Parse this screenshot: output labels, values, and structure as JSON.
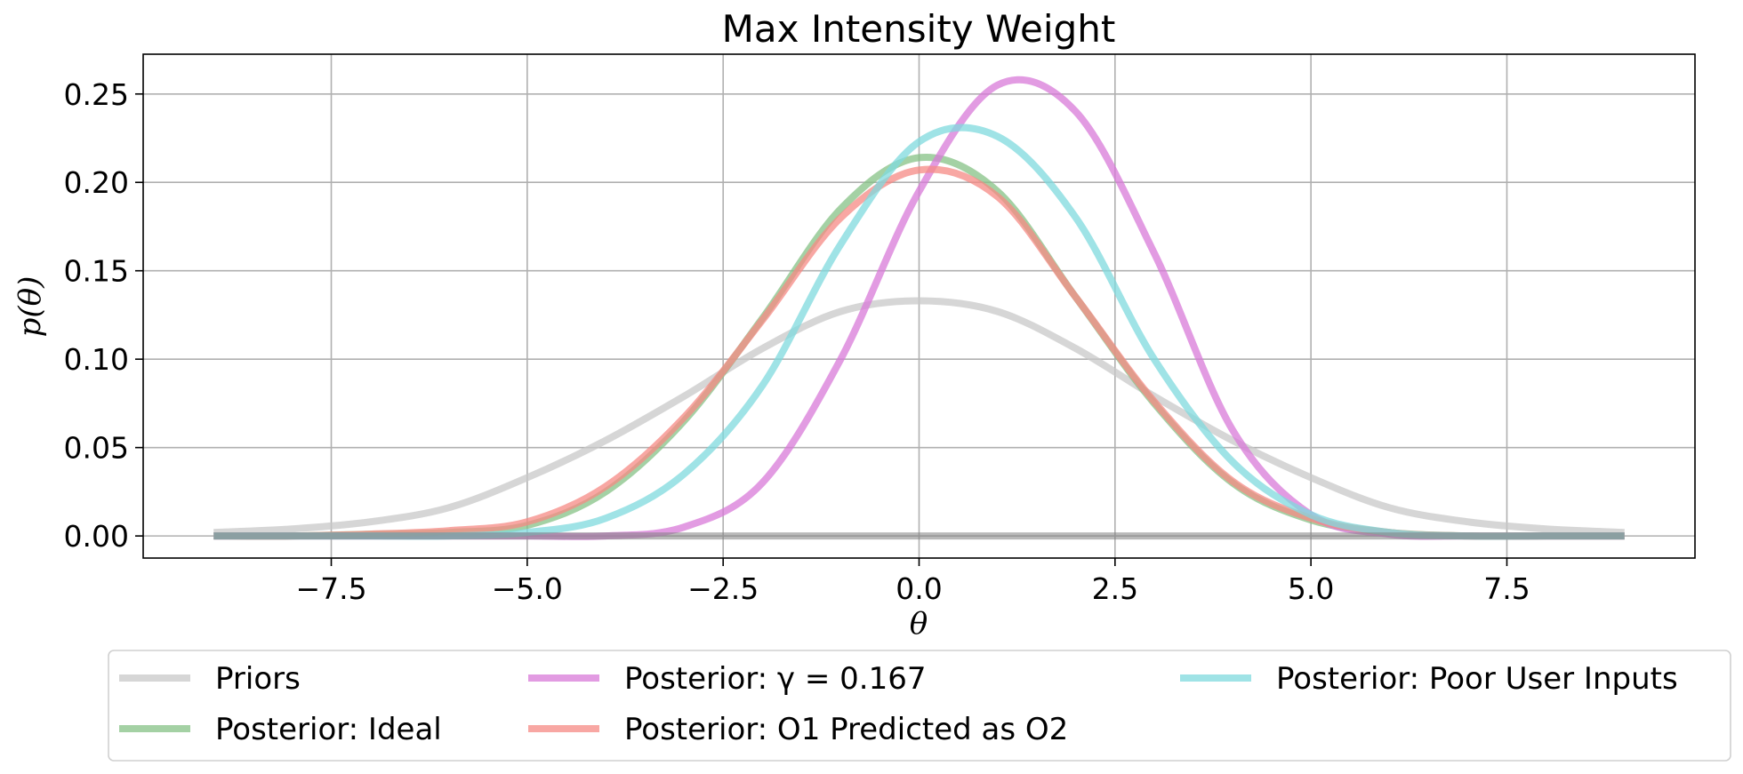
{
  "chart_data": {
    "type": "line",
    "title": "Max Intensity Weight",
    "xlabel": "θ",
    "ylabel": "p(θ)",
    "xlim": [
      -9.9,
      9.9
    ],
    "ylim": [
      -0.0125,
      0.2725
    ],
    "xticks": [
      -7.5,
      -5.0,
      -2.5,
      0.0,
      2.5,
      5.0,
      7.5
    ],
    "xtick_labels": [
      "−7.5",
      "−5.0",
      "−2.5",
      "0.0",
      "2.5",
      "5.0",
      "7.5"
    ],
    "yticks": [
      0.0,
      0.05,
      0.1,
      0.15,
      0.2,
      0.25
    ],
    "ytick_labels": [
      "0.00",
      "0.05",
      "0.10",
      "0.15",
      "0.20",
      "0.25"
    ],
    "grid": true,
    "legend_position": "below",
    "x": [
      -9.0,
      -8.0,
      -7.0,
      -6.0,
      -5.0,
      -4.0,
      -3.0,
      -2.0,
      -1.0,
      0.0,
      1.0,
      2.0,
      3.0,
      4.0,
      5.0,
      6.0,
      7.0,
      8.0,
      9.0
    ],
    "series": [
      {
        "name": "Priors",
        "color": "#c8c8c8",
        "values": [
          0.002,
          0.004,
          0.008,
          0.016,
          0.033,
          0.054,
          0.079,
          0.106,
          0.127,
          0.133,
          0.127,
          0.106,
          0.079,
          0.054,
          0.033,
          0.016,
          0.008,
          0.004,
          0.002
        ]
      },
      {
        "name": "Posterior: Ideal",
        "color": "#85c285",
        "values": [
          0.0,
          0.0,
          0.001,
          0.002,
          0.006,
          0.025,
          0.065,
          0.123,
          0.185,
          0.214,
          0.195,
          0.135,
          0.075,
          0.03,
          0.009,
          0.002,
          0.0,
          0.0,
          0.0
        ]
      },
      {
        "name": "Posterior: γ = 0.167",
        "color": "#d87ad8",
        "values": [
          0.0,
          0.0,
          0.0,
          0.0,
          0.0,
          0.0,
          0.005,
          0.03,
          0.1,
          0.195,
          0.255,
          0.24,
          0.16,
          0.06,
          0.012,
          0.001,
          0.0,
          0.0,
          0.0
        ]
      },
      {
        "name": "Posterior: O1 Predicted as O2",
        "color": "#f58a84",
        "values": [
          0.0,
          0.0,
          0.001,
          0.003,
          0.008,
          0.028,
          0.067,
          0.122,
          0.18,
          0.207,
          0.192,
          0.135,
          0.076,
          0.031,
          0.01,
          0.002,
          0.0,
          0.0,
          0.0
        ]
      },
      {
        "name": "Posterior: Poor User Inputs",
        "color": "#7fd9dd",
        "values": [
          0.0,
          0.0,
          0.0,
          0.0,
          0.002,
          0.01,
          0.035,
          0.085,
          0.165,
          0.223,
          0.226,
          0.18,
          0.1,
          0.042,
          0.012,
          0.002,
          0.0,
          0.0,
          0.0
        ]
      }
    ],
    "baseline_color": "#7f7f7f"
  }
}
